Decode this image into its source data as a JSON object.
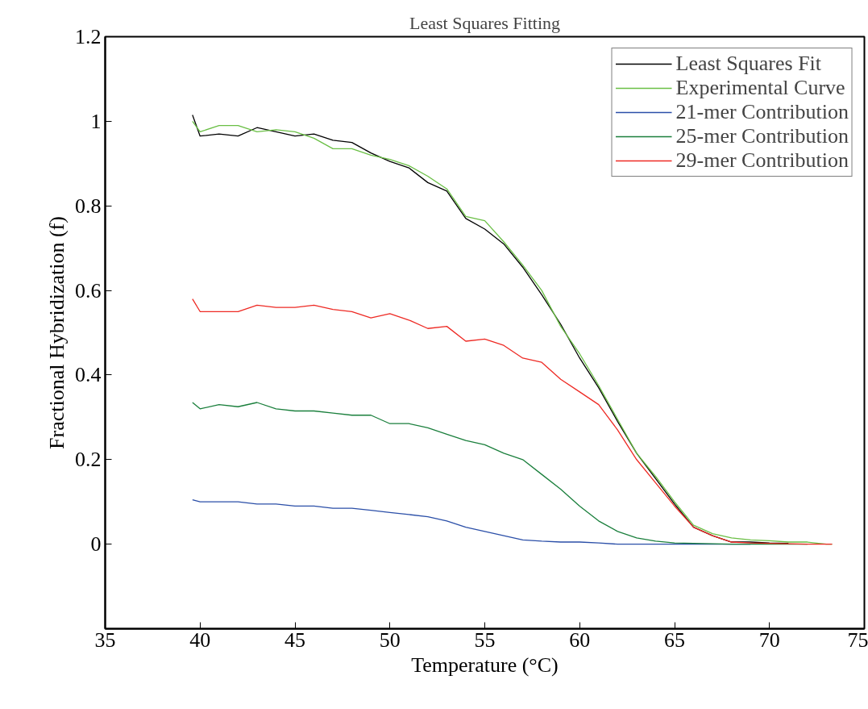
{
  "chart_data": {
    "type": "line",
    "title": "Least Squares Fitting",
    "xlabel": "Temperature (°C)",
    "ylabel": "Fractional Hybridization (f)",
    "x": [
      39.6,
      40,
      41,
      42,
      43,
      44,
      45,
      46,
      47,
      48,
      49,
      50,
      51,
      52,
      53,
      54,
      55,
      56,
      57,
      58,
      59,
      60,
      61,
      62,
      63,
      64,
      65,
      66,
      67,
      68,
      69,
      70,
      71,
      72,
      73,
      73.3
    ],
    "series": [
      {
        "name": "Least Squares Fit",
        "color": "#000000",
        "values": [
          1.015,
          0.965,
          0.97,
          0.965,
          0.985,
          0.975,
          0.965,
          0.97,
          0.955,
          0.95,
          0.925,
          0.905,
          0.89,
          0.855,
          0.835,
          0.77,
          0.745,
          0.71,
          0.655,
          0.59,
          0.52,
          0.44,
          0.37,
          0.29,
          0.215,
          0.155,
          0.095,
          0.04,
          0.02,
          0.005,
          0.005,
          0.003,
          0.002,
          null,
          null,
          null
        ]
      },
      {
        "name": "Experimental Curve",
        "color": "#6abf45",
        "values": [
          1.0,
          0.975,
          0.99,
          0.99,
          0.975,
          0.98,
          0.975,
          0.96,
          0.935,
          0.935,
          0.92,
          0.91,
          0.895,
          0.87,
          0.84,
          0.775,
          0.765,
          0.715,
          0.66,
          0.6,
          0.515,
          0.45,
          0.375,
          0.295,
          0.215,
          0.16,
          0.1,
          0.045,
          0.025,
          0.015,
          0.01,
          0.008,
          0.005,
          0.005,
          0.0,
          0.0
        ]
      },
      {
        "name": "21-mer Contribution",
        "color": "#2b4fa8",
        "values": [
          0.105,
          0.1,
          0.1,
          0.1,
          0.095,
          0.095,
          0.09,
          0.09,
          0.085,
          0.085,
          0.08,
          0.075,
          0.07,
          0.065,
          0.055,
          0.04,
          0.03,
          0.02,
          0.01,
          0.007,
          0.005,
          0.005,
          0.003,
          0.0,
          0.0,
          0.0,
          0.0,
          0.0,
          0.0,
          0.0,
          0.0,
          null,
          null,
          null,
          null,
          null
        ]
      },
      {
        "name": "25-mer Contribution",
        "color": "#1a7f3c",
        "values": [
          0.335,
          0.32,
          0.33,
          0.325,
          0.335,
          0.32,
          0.315,
          0.315,
          0.31,
          0.305,
          0.305,
          0.285,
          0.285,
          0.275,
          0.26,
          0.245,
          0.235,
          0.215,
          0.2,
          0.165,
          0.13,
          0.09,
          0.055,
          0.03,
          0.015,
          0.007,
          0.003,
          0.002,
          0.001,
          0.0,
          0.0,
          0.0,
          0.0,
          0.0,
          null,
          null
        ]
      },
      {
        "name": "29-mer Contribution",
        "color": "#ee2a24",
        "values": [
          0.58,
          0.55,
          0.55,
          0.55,
          0.565,
          0.56,
          0.56,
          0.565,
          0.555,
          0.55,
          0.535,
          0.545,
          0.53,
          0.51,
          0.515,
          0.48,
          0.485,
          0.47,
          0.44,
          0.43,
          0.39,
          0.36,
          0.33,
          0.27,
          0.2,
          0.145,
          0.09,
          0.04,
          0.02,
          0.005,
          0.003,
          0.002,
          0.001,
          0.0,
          0.0,
          0.0
        ]
      }
    ],
    "xlim": [
      35,
      75
    ],
    "xticks": [
      35,
      40,
      45,
      50,
      55,
      60,
      65,
      70,
      75
    ],
    "ylim": [
      -0.2,
      1.2
    ],
    "yticks": [
      0,
      0.2,
      0.4,
      0.6,
      0.8,
      1,
      1.2
    ],
    "grid": false,
    "legend": "top right",
    "marker": "none",
    "line_style": "solid"
  }
}
